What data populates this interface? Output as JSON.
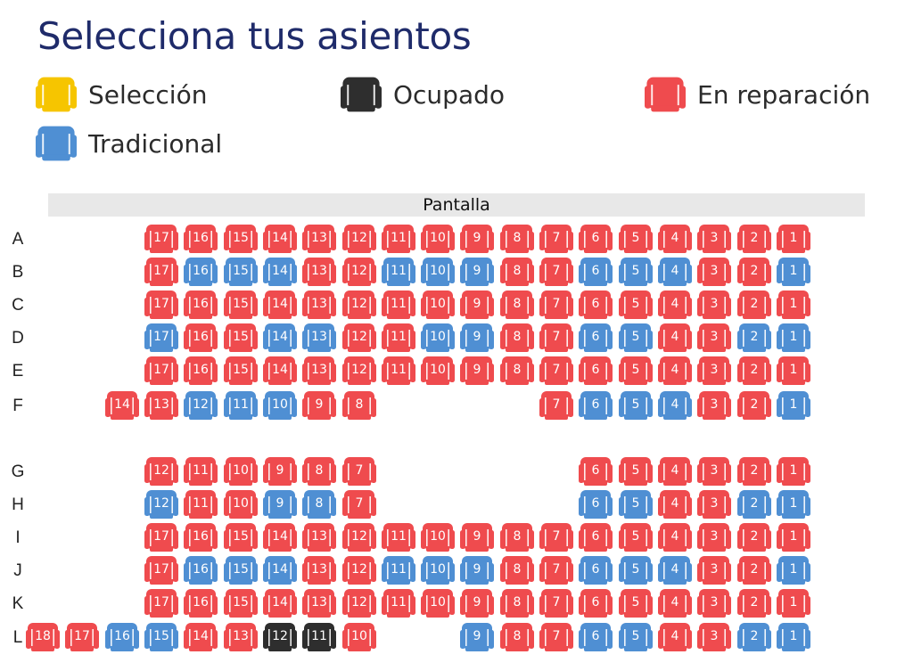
{
  "title": "Selecciona tus asientos",
  "colors": {
    "title": "#1f2b6a",
    "seleccion": "#f6c500",
    "ocupado": "#2e2e2e",
    "reparacion": "#ef4b4e",
    "tradicional": "#4f8fd3"
  },
  "legend": [
    {
      "status": "seleccion",
      "label": "Selección",
      "icon": "seat-icon"
    },
    {
      "status": "ocupado",
      "label": "Ocupado",
      "icon": "seat-icon"
    },
    {
      "status": "reparacion",
      "label": "En reparación",
      "icon": "seat-icon"
    },
    {
      "status": "tradicional",
      "label": "Tradicional",
      "icon": "seat-icon"
    }
  ],
  "screen_label": "Pantalla",
  "rows": [
    {
      "label": "A",
      "seats": [
        {
          "num": "17",
          "status": "reparacion"
        },
        {
          "num": "16",
          "status": "reparacion"
        },
        {
          "num": "15",
          "status": "reparacion"
        },
        {
          "num": "14",
          "status": "reparacion"
        },
        {
          "num": "13",
          "status": "reparacion"
        },
        {
          "num": "12",
          "status": "reparacion"
        },
        {
          "num": "11",
          "status": "reparacion"
        },
        {
          "num": "10",
          "status": "reparacion"
        },
        {
          "num": "9",
          "status": "reparacion"
        },
        {
          "num": "8",
          "status": "reparacion"
        },
        {
          "num": "7",
          "status": "reparacion"
        },
        {
          "num": "6",
          "status": "reparacion"
        },
        {
          "num": "5",
          "status": "reparacion"
        },
        {
          "num": "4",
          "status": "reparacion"
        },
        {
          "num": "3",
          "status": "reparacion"
        },
        {
          "num": "2",
          "status": "reparacion"
        },
        {
          "num": "1",
          "status": "reparacion"
        }
      ]
    },
    {
      "label": "B",
      "seats": [
        {
          "num": "17",
          "status": "reparacion"
        },
        {
          "num": "16",
          "status": "tradicional"
        },
        {
          "num": "15",
          "status": "tradicional"
        },
        {
          "num": "14",
          "status": "tradicional"
        },
        {
          "num": "13",
          "status": "reparacion"
        },
        {
          "num": "12",
          "status": "reparacion"
        },
        {
          "num": "11",
          "status": "tradicional"
        },
        {
          "num": "10",
          "status": "tradicional"
        },
        {
          "num": "9",
          "status": "tradicional"
        },
        {
          "num": "8",
          "status": "reparacion"
        },
        {
          "num": "7",
          "status": "reparacion"
        },
        {
          "num": "6",
          "status": "tradicional"
        },
        {
          "num": "5",
          "status": "tradicional"
        },
        {
          "num": "4",
          "status": "tradicional"
        },
        {
          "num": "3",
          "status": "reparacion"
        },
        {
          "num": "2",
          "status": "reparacion"
        },
        {
          "num": "1",
          "status": "tradicional"
        }
      ]
    },
    {
      "label": "C",
      "seats": [
        {
          "num": "17",
          "status": "reparacion"
        },
        {
          "num": "16",
          "status": "reparacion"
        },
        {
          "num": "15",
          "status": "reparacion"
        },
        {
          "num": "14",
          "status": "reparacion"
        },
        {
          "num": "13",
          "status": "reparacion"
        },
        {
          "num": "12",
          "status": "reparacion"
        },
        {
          "num": "11",
          "status": "reparacion"
        },
        {
          "num": "10",
          "status": "reparacion"
        },
        {
          "num": "9",
          "status": "reparacion"
        },
        {
          "num": "8",
          "status": "reparacion"
        },
        {
          "num": "7",
          "status": "reparacion"
        },
        {
          "num": "6",
          "status": "reparacion"
        },
        {
          "num": "5",
          "status": "reparacion"
        },
        {
          "num": "4",
          "status": "reparacion"
        },
        {
          "num": "3",
          "status": "reparacion"
        },
        {
          "num": "2",
          "status": "reparacion"
        },
        {
          "num": "1",
          "status": "reparacion"
        }
      ]
    },
    {
      "label": "D",
      "seats": [
        {
          "num": "17",
          "status": "tradicional"
        },
        {
          "num": "16",
          "status": "reparacion"
        },
        {
          "num": "15",
          "status": "reparacion"
        },
        {
          "num": "14",
          "status": "tradicional"
        },
        {
          "num": "13",
          "status": "tradicional"
        },
        {
          "num": "12",
          "status": "reparacion"
        },
        {
          "num": "11",
          "status": "reparacion"
        },
        {
          "num": "10",
          "status": "tradicional"
        },
        {
          "num": "9",
          "status": "tradicional"
        },
        {
          "num": "8",
          "status": "reparacion"
        },
        {
          "num": "7",
          "status": "reparacion"
        },
        {
          "num": "6",
          "status": "tradicional"
        },
        {
          "num": "5",
          "status": "tradicional"
        },
        {
          "num": "4",
          "status": "reparacion"
        },
        {
          "num": "3",
          "status": "reparacion"
        },
        {
          "num": "2",
          "status": "tradicional"
        },
        {
          "num": "1",
          "status": "tradicional"
        }
      ]
    },
    {
      "label": "E",
      "seats": [
        {
          "num": "17",
          "status": "reparacion"
        },
        {
          "num": "16",
          "status": "reparacion"
        },
        {
          "num": "15",
          "status": "reparacion"
        },
        {
          "num": "14",
          "status": "reparacion"
        },
        {
          "num": "13",
          "status": "reparacion"
        },
        {
          "num": "12",
          "status": "reparacion"
        },
        {
          "num": "11",
          "status": "reparacion"
        },
        {
          "num": "10",
          "status": "reparacion"
        },
        {
          "num": "9",
          "status": "reparacion"
        },
        {
          "num": "8",
          "status": "reparacion"
        },
        {
          "num": "7",
          "status": "reparacion"
        },
        {
          "num": "6",
          "status": "reparacion"
        },
        {
          "num": "5",
          "status": "reparacion"
        },
        {
          "num": "4",
          "status": "reparacion"
        },
        {
          "num": "3",
          "status": "reparacion"
        },
        {
          "num": "2",
          "status": "reparacion"
        },
        {
          "num": "1",
          "status": "reparacion"
        }
      ]
    },
    {
      "label": "F",
      "seats": [
        {
          "num": "14",
          "status": "reparacion"
        },
        {
          "num": "13",
          "status": "reparacion"
        },
        {
          "num": "12",
          "status": "tradicional"
        },
        {
          "num": "11",
          "status": "tradicional"
        },
        {
          "num": "10",
          "status": "tradicional"
        },
        {
          "num": "9",
          "status": "reparacion"
        },
        {
          "num": "8",
          "status": "reparacion"
        },
        null,
        null,
        null,
        null,
        {
          "num": "7",
          "status": "reparacion"
        },
        {
          "num": "6",
          "status": "tradicional"
        },
        {
          "num": "5",
          "status": "tradicional"
        },
        {
          "num": "4",
          "status": "tradicional"
        },
        {
          "num": "3",
          "status": "reparacion"
        },
        {
          "num": "2",
          "status": "reparacion"
        },
        {
          "num": "1",
          "status": "tradicional"
        }
      ]
    },
    {
      "label": "G",
      "seats": [
        {
          "num": "12",
          "status": "reparacion"
        },
        {
          "num": "11",
          "status": "reparacion"
        },
        {
          "num": "10",
          "status": "reparacion"
        },
        {
          "num": "9",
          "status": "reparacion"
        },
        {
          "num": "8",
          "status": "reparacion"
        },
        {
          "num": "7",
          "status": "reparacion"
        },
        null,
        null,
        null,
        null,
        null,
        {
          "num": "6",
          "status": "reparacion"
        },
        {
          "num": "5",
          "status": "reparacion"
        },
        {
          "num": "4",
          "status": "reparacion"
        },
        {
          "num": "3",
          "status": "reparacion"
        },
        {
          "num": "2",
          "status": "reparacion"
        },
        {
          "num": "1",
          "status": "reparacion"
        }
      ]
    },
    {
      "label": "H",
      "seats": [
        {
          "num": "12",
          "status": "tradicional"
        },
        {
          "num": "11",
          "status": "reparacion"
        },
        {
          "num": "10",
          "status": "reparacion"
        },
        {
          "num": "9",
          "status": "tradicional"
        },
        {
          "num": "8",
          "status": "tradicional"
        },
        {
          "num": "7",
          "status": "reparacion"
        },
        null,
        null,
        null,
        null,
        null,
        {
          "num": "6",
          "status": "tradicional"
        },
        {
          "num": "5",
          "status": "tradicional"
        },
        {
          "num": "4",
          "status": "reparacion"
        },
        {
          "num": "3",
          "status": "reparacion"
        },
        {
          "num": "2",
          "status": "tradicional"
        },
        {
          "num": "1",
          "status": "tradicional"
        }
      ]
    },
    {
      "label": "I",
      "seats": [
        {
          "num": "17",
          "status": "reparacion"
        },
        {
          "num": "16",
          "status": "reparacion"
        },
        {
          "num": "15",
          "status": "reparacion"
        },
        {
          "num": "14",
          "status": "reparacion"
        },
        {
          "num": "13",
          "status": "reparacion"
        },
        {
          "num": "12",
          "status": "reparacion"
        },
        {
          "num": "11",
          "status": "reparacion"
        },
        {
          "num": "10",
          "status": "reparacion"
        },
        {
          "num": "9",
          "status": "reparacion"
        },
        {
          "num": "8",
          "status": "reparacion"
        },
        {
          "num": "7",
          "status": "reparacion"
        },
        {
          "num": "6",
          "status": "reparacion"
        },
        {
          "num": "5",
          "status": "reparacion"
        },
        {
          "num": "4",
          "status": "reparacion"
        },
        {
          "num": "3",
          "status": "reparacion"
        },
        {
          "num": "2",
          "status": "reparacion"
        },
        {
          "num": "1",
          "status": "reparacion"
        }
      ]
    },
    {
      "label": "J",
      "seats": [
        {
          "num": "17",
          "status": "reparacion"
        },
        {
          "num": "16",
          "status": "tradicional"
        },
        {
          "num": "15",
          "status": "tradicional"
        },
        {
          "num": "14",
          "status": "tradicional"
        },
        {
          "num": "13",
          "status": "reparacion"
        },
        {
          "num": "12",
          "status": "reparacion"
        },
        {
          "num": "11",
          "status": "tradicional"
        },
        {
          "num": "10",
          "status": "tradicional"
        },
        {
          "num": "9",
          "status": "tradicional"
        },
        {
          "num": "8",
          "status": "reparacion"
        },
        {
          "num": "7",
          "status": "reparacion"
        },
        {
          "num": "6",
          "status": "tradicional"
        },
        {
          "num": "5",
          "status": "tradicional"
        },
        {
          "num": "4",
          "status": "tradicional"
        },
        {
          "num": "3",
          "status": "reparacion"
        },
        {
          "num": "2",
          "status": "reparacion"
        },
        {
          "num": "1",
          "status": "tradicional"
        }
      ]
    },
    {
      "label": "K",
      "seats": [
        {
          "num": "17",
          "status": "reparacion"
        },
        {
          "num": "16",
          "status": "reparacion"
        },
        {
          "num": "15",
          "status": "reparacion"
        },
        {
          "num": "14",
          "status": "reparacion"
        },
        {
          "num": "13",
          "status": "reparacion"
        },
        {
          "num": "12",
          "status": "reparacion"
        },
        {
          "num": "11",
          "status": "reparacion"
        },
        {
          "num": "10",
          "status": "reparacion"
        },
        {
          "num": "9",
          "status": "reparacion"
        },
        {
          "num": "8",
          "status": "reparacion"
        },
        {
          "num": "7",
          "status": "reparacion"
        },
        {
          "num": "6",
          "status": "reparacion"
        },
        {
          "num": "5",
          "status": "reparacion"
        },
        {
          "num": "4",
          "status": "reparacion"
        },
        {
          "num": "3",
          "status": "reparacion"
        },
        {
          "num": "2",
          "status": "reparacion"
        },
        {
          "num": "1",
          "status": "reparacion"
        }
      ]
    },
    {
      "label": "L",
      "seats": [
        {
          "num": "18",
          "status": "reparacion"
        },
        {
          "num": "17",
          "status": "reparacion"
        },
        {
          "num": "16",
          "status": "tradicional"
        },
        {
          "num": "15",
          "status": "tradicional"
        },
        {
          "num": "14",
          "status": "reparacion"
        },
        {
          "num": "13",
          "status": "reparacion"
        },
        {
          "num": "12",
          "status": "ocupado"
        },
        {
          "num": "11",
          "status": "ocupado"
        },
        {
          "num": "10",
          "status": "reparacion"
        },
        null,
        null,
        {
          "num": "9",
          "status": "tradicional"
        },
        {
          "num": "8",
          "status": "reparacion"
        },
        {
          "num": "7",
          "status": "reparacion"
        },
        {
          "num": "6",
          "status": "tradicional"
        },
        {
          "num": "5",
          "status": "tradicional"
        },
        {
          "num": "4",
          "status": "reparacion"
        },
        {
          "num": "3",
          "status": "reparacion"
        },
        {
          "num": "2",
          "status": "tradicional"
        },
        {
          "num": "1",
          "status": "tradicional"
        }
      ]
    }
  ]
}
